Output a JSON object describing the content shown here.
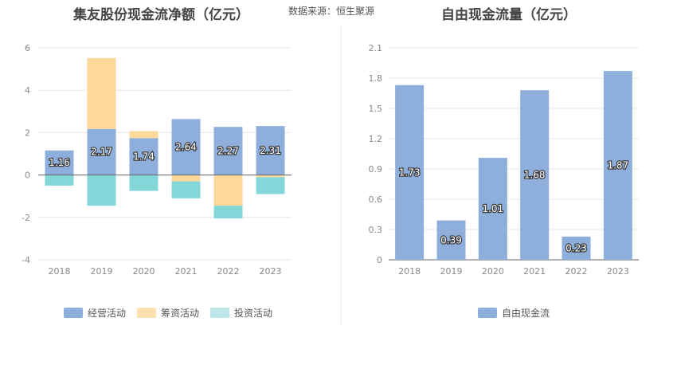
{
  "header": {
    "left_title": "集友股份现金流净额（亿元）",
    "source": "数据来源：恒生聚源",
    "right_title": "自由现金流量（亿元）"
  },
  "colors": {
    "operating": "#8eaedc",
    "financing": "#fdd999",
    "investing": "#84d7d9",
    "fcf": "#8eaedc",
    "grid": "#e6e6e6",
    "axis": "#666666",
    "tick_text": "#888888"
  },
  "legend_left": [
    {
      "label": "经营活动",
      "color": "#8eaedc"
    },
    {
      "label": "筹资活动",
      "color": "#fde0b0"
    },
    {
      "label": "投资活动",
      "color": "#bfe7e9"
    }
  ],
  "legend_right": [
    {
      "label": "自由现金流",
      "color": "#8eaedc"
    }
  ],
  "chart_data": [
    {
      "type": "bar",
      "stacked": true,
      "categories": [
        "2018",
        "2019",
        "2020",
        "2021",
        "2022",
        "2023"
      ],
      "ylim": [
        -4,
        6
      ],
      "yticks": [
        -4,
        -2,
        0,
        2,
        4,
        6
      ],
      "grid": true,
      "legend_position": "bottom",
      "series": [
        {
          "name": "经营活动",
          "values": [
            1.16,
            2.17,
            1.74,
            2.64,
            2.27,
            2.31
          ],
          "labeled": true
        },
        {
          "name": "筹资活动",
          "values": [
            0.0,
            3.35,
            0.33,
            -0.3,
            -1.45,
            -0.1
          ]
        },
        {
          "name": "投资活动",
          "values": [
            -0.5,
            -1.45,
            -0.75,
            -0.8,
            -0.6,
            -0.8
          ]
        }
      ]
    },
    {
      "type": "bar",
      "categories": [
        "2018",
        "2019",
        "2020",
        "2021",
        "2022",
        "2023"
      ],
      "ylim": [
        0,
        2.1
      ],
      "yticks": [
        "0",
        "0.3",
        "0.6",
        "0.9",
        "1.2",
        "1.5",
        "1.8",
        "2.1"
      ],
      "grid": true,
      "legend_position": "bottom",
      "series": [
        {
          "name": "自由现金流",
          "values": [
            1.73,
            0.39,
            1.01,
            1.68,
            0.23,
            1.87
          ],
          "labeled": true
        }
      ]
    }
  ]
}
